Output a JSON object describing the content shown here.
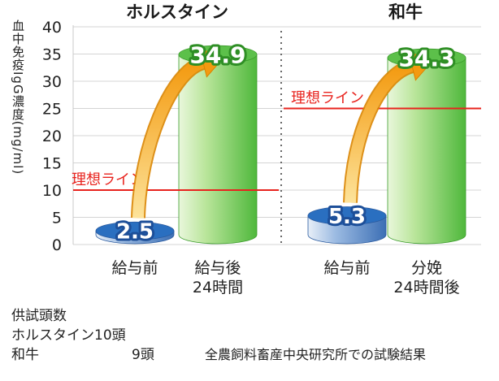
{
  "chart_data": {
    "type": "bar",
    "ylabel": "血中免疫IgG濃度(mg/ml)",
    "ylim": [
      0,
      40
    ],
    "yticks": [
      0,
      5,
      10,
      15,
      20,
      25,
      30,
      35,
      40
    ],
    "groups": [
      {
        "title": "ホルスタイン",
        "ideal_line": 10,
        "ideal_label": "理想ライン",
        "bars": [
          {
            "label": "給与前",
            "value": 2.5,
            "value_label": "2.5",
            "color": "blue"
          },
          {
            "label": "給与後\n24時間",
            "value": 34.9,
            "value_label": "34.9",
            "color": "green"
          }
        ]
      },
      {
        "title": "和牛",
        "ideal_line": 25,
        "ideal_label": "理想ライン",
        "bars": [
          {
            "label": "給与前",
            "value": 5.3,
            "value_label": "5.3",
            "color": "blue"
          },
          {
            "label": "分娩\n24時間後",
            "value": 34.3,
            "value_label": "34.3",
            "color": "green"
          }
        ]
      }
    ],
    "colors": {
      "blue": "#2a6fc0",
      "green": "#5cc04a",
      "ideal": "#e8231e",
      "arrow": "#f5a21a"
    }
  },
  "footer": {
    "heading": "供試頭数",
    "holstein": "ホルスタイン10頭",
    "wagyu_label": "和牛",
    "wagyu_count": "9頭",
    "source": "全農飼料畜産中央研究所での試験結果"
  }
}
